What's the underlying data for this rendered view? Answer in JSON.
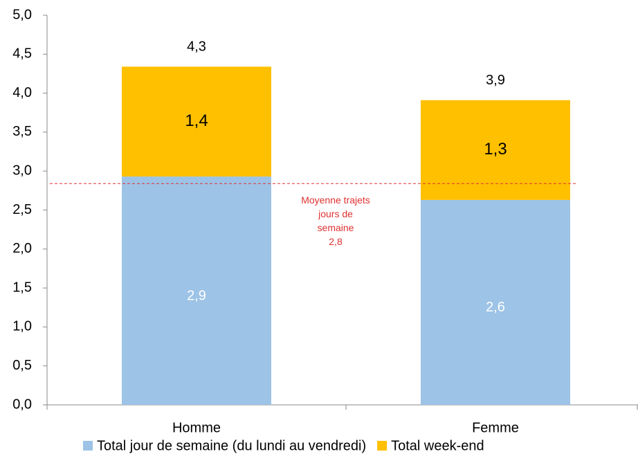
{
  "chart_data": {
    "type": "stacked-bar",
    "categories": [
      "Homme",
      "Femme"
    ],
    "series": [
      {
        "name": "Total jour de semaine (du lundi au vendredi)",
        "color": "#9dc3e6",
        "values": [
          2.93,
          2.63
        ],
        "value_labels": [
          "2,9",
          "2,6"
        ],
        "label_color": "#ffffff"
      },
      {
        "name": "Total week-end",
        "color": "#ffc000",
        "values": [
          1.41,
          1.28
        ],
        "value_labels": [
          "1,4",
          "1,3"
        ],
        "label_color": "#000000"
      }
    ],
    "totals": [
      4.34,
      3.91
    ],
    "total_labels": [
      "4,3",
      "3,9"
    ],
    "ylim": [
      0,
      5
    ],
    "yticks": [
      {
        "value": 0,
        "label": "0,0"
      },
      {
        "value": 0.5,
        "label": "0,5"
      },
      {
        "value": 1,
        "label": "1,0"
      },
      {
        "value": 1.5,
        "label": "1,5"
      },
      {
        "value": 2,
        "label": "2,0"
      },
      {
        "value": 2.5,
        "label": "2,5"
      },
      {
        "value": 3,
        "label": "3,0"
      },
      {
        "value": 3.5,
        "label": "3,5"
      },
      {
        "value": 4,
        "label": "4,0"
      },
      {
        "value": 4.5,
        "label": "4,5"
      },
      {
        "value": 5,
        "label": "5,0"
      }
    ],
    "reference_line": {
      "value": 2.84,
      "color": "#e03030",
      "lines": [
        "Moyenne  trajets",
        "jours de",
        "semaine",
        "2,8"
      ]
    },
    "grid": false,
    "legend": "bottom"
  }
}
